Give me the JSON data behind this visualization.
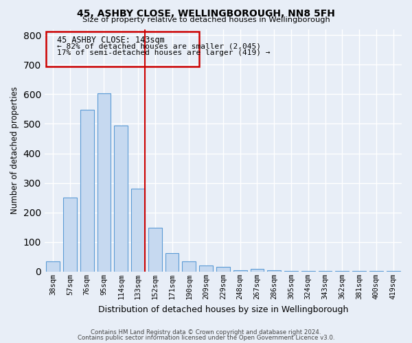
{
  "title": "45, ASHBY CLOSE, WELLINGBOROUGH, NN8 5FH",
  "subtitle": "Size of property relative to detached houses in Wellingborough",
  "xlabel": "Distribution of detached houses by size in Wellingborough",
  "ylabel": "Number of detached properties",
  "bar_labels": [
    "38sqm",
    "57sqm",
    "76sqm",
    "95sqm",
    "114sqm",
    "133sqm",
    "152sqm",
    "171sqm",
    "190sqm",
    "209sqm",
    "229sqm",
    "248sqm",
    "267sqm",
    "286sqm",
    "305sqm",
    "324sqm",
    "343sqm",
    "362sqm",
    "381sqm",
    "400sqm",
    "419sqm"
  ],
  "bar_values": [
    35,
    250,
    548,
    603,
    495,
    280,
    148,
    62,
    35,
    20,
    15,
    5,
    8,
    4,
    3,
    2,
    1,
    1,
    1,
    1,
    2
  ],
  "bar_color": "#c6d9f0",
  "bar_edge_color": "#5b9bd5",
  "vline_x_index": 5,
  "vline_color": "#cc0000",
  "ylim": [
    0,
    820
  ],
  "yticks": [
    0,
    100,
    200,
    300,
    400,
    500,
    600,
    700,
    800
  ],
  "annotation_title": "45 ASHBY CLOSE: 143sqm",
  "annotation_line1": "← 82% of detached houses are smaller (2,045)",
  "annotation_line2": "17% of semi-detached houses are larger (419) →",
  "annotation_box_color": "#cc0000",
  "footer_line1": "Contains HM Land Registry data © Crown copyright and database right 2024.",
  "footer_line2": "Contains public sector information licensed under the Open Government Licence v3.0.",
  "background_color": "#e8eef7"
}
